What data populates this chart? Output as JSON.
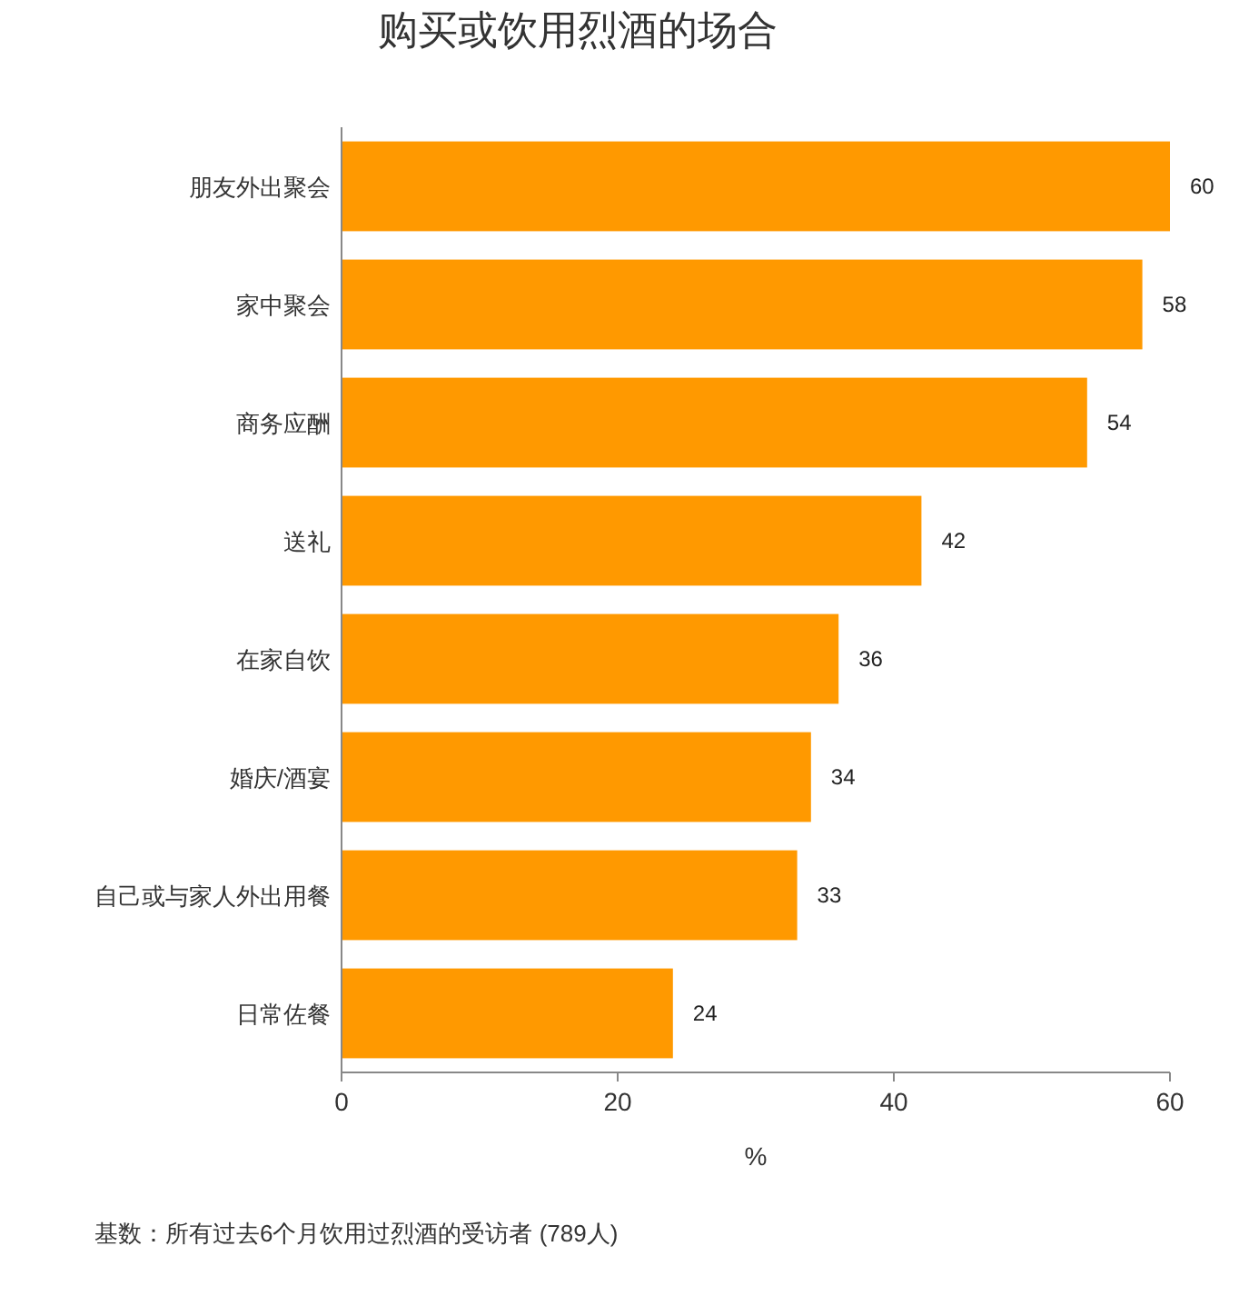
{
  "chart_data": {
    "type": "bar",
    "orientation": "horizontal",
    "title": "购买或饮用烈酒的场合",
    "xlabel": "%",
    "categories": [
      "朋友外出聚会",
      "家中聚会",
      "商务应酬",
      "送礼",
      "在家自饮",
      "婚庆/酒宴",
      "自己或与家人外出用餐",
      "日常佐餐"
    ],
    "values": [
      60,
      58,
      54,
      42,
      36,
      34,
      33,
      24
    ],
    "color": "#ff9900",
    "xlim": [
      0,
      60
    ],
    "xticks": [
      0,
      20,
      40,
      60
    ],
    "data_labels": true,
    "annotations": [
      "基数：所有过去6个月饮用过烈酒的受访者 (789人)"
    ]
  }
}
